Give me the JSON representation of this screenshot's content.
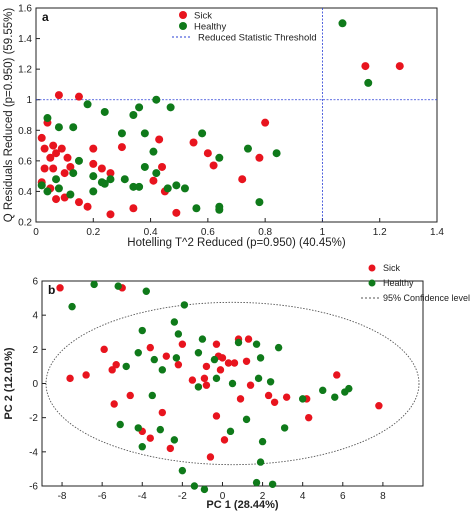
{
  "colors": {
    "sick": "#e8141e",
    "healthy": "#0f7a1a",
    "threshold": "#2a3fd6",
    "ellipse": "#555555",
    "frame": "#222222"
  },
  "chart_data": [
    {
      "panel_label": "a",
      "type": "scatter",
      "xlabel": "Hotelling T^2 Reduced (p=0.950) (40.45%)",
      "ylabel": "Q Residuals Reduced (p=0.950) (59.55%)",
      "xlim": [
        0,
        1.4
      ],
      "ylim": [
        0.2,
        1.6
      ],
      "xticks": [
        "0",
        "0.2",
        "0.4",
        "0.6",
        "0.8",
        "1",
        "1.2",
        "1.4"
      ],
      "yticks": [
        "0.2",
        "0.4",
        "0.6",
        "0.8",
        "1",
        "1.2",
        "1.4",
        "1.6"
      ],
      "legend": {
        "position": "top-center",
        "items": [
          "Sick",
          "Healthy",
          "Reduced Statistic Threshold"
        ]
      },
      "threshold": {
        "x": 1.0,
        "y": 1.0
      },
      "series": [
        {
          "name": "Sick",
          "points": [
            [
              0.08,
              1.03
            ],
            [
              0.15,
              1.02
            ],
            [
              0.04,
              0.85
            ],
            [
              0.02,
              0.75
            ],
            [
              0.03,
              0.68
            ],
            [
              0.06,
              0.7
            ],
            [
              0.07,
              0.65
            ],
            [
              0.09,
              0.68
            ],
            [
              0.11,
              0.62
            ],
            [
              0.05,
              0.62
            ],
            [
              0.03,
              0.55
            ],
            [
              0.06,
              0.55
            ],
            [
              0.1,
              0.52
            ],
            [
              0.12,
              0.56
            ],
            [
              0.2,
              0.58
            ],
            [
              0.23,
              0.55
            ],
            [
              0.26,
              0.52
            ],
            [
              0.02,
              0.46
            ],
            [
              0.05,
              0.42
            ],
            [
              0.07,
              0.35
            ],
            [
              0.1,
              0.36
            ],
            [
              0.15,
              0.33
            ],
            [
              0.18,
              0.3
            ],
            [
              0.26,
              0.25
            ],
            [
              0.34,
              0.29
            ],
            [
              0.2,
              0.68
            ],
            [
              0.3,
              0.69
            ],
            [
              0.43,
              0.74
            ],
            [
              0.44,
              0.56
            ],
            [
              0.41,
              0.47
            ],
            [
              0.45,
              0.4
            ],
            [
              0.55,
              0.72
            ],
            [
              0.6,
              0.65
            ],
            [
              0.62,
              0.57
            ],
            [
              0.8,
              0.85
            ],
            [
              0.78,
              0.62
            ],
            [
              0.72,
              0.48
            ],
            [
              0.49,
              0.26
            ],
            [
              1.15,
              1.22
            ],
            [
              1.27,
              1.22
            ]
          ]
        },
        {
          "name": "Healthy",
          "points": [
            [
              0.04,
              0.88
            ],
            [
              0.08,
              0.82
            ],
            [
              0.13,
              0.82
            ],
            [
              0.18,
              0.97
            ],
            [
              0.24,
              0.92
            ],
            [
              0.34,
              0.9
            ],
            [
              0.36,
              0.95
            ],
            [
              0.3,
              0.78
            ],
            [
              0.38,
              0.78
            ],
            [
              0.42,
              1.0
            ],
            [
              0.47,
              0.95
            ],
            [
              0.41,
              0.66
            ],
            [
              0.58,
              0.78
            ],
            [
              0.64,
              0.62
            ],
            [
              0.74,
              0.68
            ],
            [
              0.84,
              0.65
            ],
            [
              0.2,
              0.5
            ],
            [
              0.24,
              0.45
            ],
            [
              0.26,
              0.48
            ],
            [
              0.15,
              0.6
            ],
            [
              0.13,
              0.52
            ],
            [
              0.08,
              0.42
            ],
            [
              0.07,
              0.48
            ],
            [
              0.02,
              0.44
            ],
            [
              0.04,
              0.4
            ],
            [
              0.31,
              0.48
            ],
            [
              0.34,
              0.43
            ],
            [
              0.38,
              0.56
            ],
            [
              0.36,
              0.43
            ],
            [
              0.42,
              0.52
            ],
            [
              0.46,
              0.42
            ],
            [
              0.52,
              0.42
            ],
            [
              0.56,
              0.29
            ],
            [
              0.64,
              0.3
            ],
            [
              0.64,
              0.28
            ],
            [
              0.78,
              0.33
            ],
            [
              0.49,
              0.44
            ],
            [
              0.23,
              0.46
            ],
            [
              0.2,
              0.4
            ],
            [
              0.12,
              0.38
            ],
            [
              1.07,
              1.5
            ],
            [
              1.16,
              1.11
            ]
          ]
        }
      ]
    },
    {
      "panel_label": "b",
      "type": "scatter",
      "xlabel": "PC 1 (28.44%)",
      "ylabel": "PC 2 (12.01%)",
      "xlim": [
        -9,
        10
      ],
      "ylim": [
        -6,
        6
      ],
      "xticks": [
        "-8",
        "-6",
        "-4",
        "-2",
        "0",
        "2",
        "4",
        "6",
        "8"
      ],
      "yticks": [
        "-6",
        "-4",
        "-2",
        "0",
        "2",
        "4",
        "6"
      ],
      "legend": {
        "position": "top-right",
        "items": [
          "Sick",
          "Healthy",
          "95% Confidence level"
        ]
      },
      "ellipse": {
        "cx": 0.5,
        "cy": 0,
        "rx": 9.3,
        "ry": 4.75
      },
      "series": [
        {
          "name": "Sick",
          "points": [
            [
              -8.1,
              5.6
            ],
            [
              -7.6,
              0.3
            ],
            [
              -6.8,
              0.5
            ],
            [
              -5.0,
              5.6
            ],
            [
              -5.9,
              2.0
            ],
            [
              -5.3,
              1.1
            ],
            [
              -5.5,
              0.8
            ],
            [
              -5.4,
              -1.2
            ],
            [
              -4.6,
              -0.7
            ],
            [
              -4.0,
              -2.8
            ],
            [
              -3.6,
              -3.2
            ],
            [
              -3.0,
              -1.7
            ],
            [
              -3.6,
              2.1
            ],
            [
              -2.8,
              1.6
            ],
            [
              -2.0,
              2.3
            ],
            [
              -2.2,
              1.1
            ],
            [
              -1.5,
              0.2
            ],
            [
              -0.9,
              0.3
            ],
            [
              -0.8,
              1.0
            ],
            [
              -0.8,
              -0.1
            ],
            [
              -0.2,
              1.6
            ],
            [
              0.0,
              1.5
            ],
            [
              0.3,
              1.2
            ],
            [
              0.6,
              1.2
            ],
            [
              1.2,
              1.3
            ],
            [
              1.3,
              2.6
            ],
            [
              0.8,
              2.6
            ],
            [
              -0.3,
              2.3
            ],
            [
              2.3,
              -0.7
            ],
            [
              2.6,
              -1.1
            ],
            [
              3.2,
              -0.8
            ],
            [
              4.2,
              -0.9
            ],
            [
              4.3,
              -2.0
            ],
            [
              -0.3,
              -1.9
            ],
            [
              0.1,
              -3.3
            ],
            [
              -0.6,
              -4.3
            ],
            [
              -2.6,
              -3.8
            ],
            [
              7.8,
              -1.3
            ],
            [
              5.7,
              0.5
            ],
            [
              1.4,
              -0.1
            ],
            [
              0.9,
              -0.9
            ],
            [
              -0.1,
              0.8
            ]
          ]
        },
        {
          "name": "Healthy",
          "points": [
            [
              -7.5,
              4.5
            ],
            [
              -6.4,
              5.8
            ],
            [
              -5.2,
              5.7
            ],
            [
              -3.8,
              5.4
            ],
            [
              -1.9,
              4.6
            ],
            [
              -2.4,
              3.6
            ],
            [
              -4.0,
              3.1
            ],
            [
              -4.2,
              1.8
            ],
            [
              -2.2,
              2.9
            ],
            [
              -1.0,
              2.6
            ],
            [
              0.8,
              2.4
            ],
            [
              1.7,
              2.3
            ],
            [
              1.9,
              1.5
            ],
            [
              2.8,
              2.1
            ],
            [
              -0.4,
              1.4
            ],
            [
              -1.2,
              1.8
            ],
            [
              -2.3,
              1.5
            ],
            [
              -3.4,
              1.4
            ],
            [
              -3.0,
              0.8
            ],
            [
              -4.8,
              1.0
            ],
            [
              -3.5,
              -0.7
            ],
            [
              -5.1,
              -2.4
            ],
            [
              -4.2,
              -2.6
            ],
            [
              -4.0,
              -3.7
            ],
            [
              -3.1,
              -2.7
            ],
            [
              -2.4,
              -3.3
            ],
            [
              -2.0,
              -5.1
            ],
            [
              -1.4,
              -6.0
            ],
            [
              -0.9,
              -6.2
            ],
            [
              1.7,
              -5.8
            ],
            [
              2.5,
              -5.9
            ],
            [
              1.9,
              -4.6
            ],
            [
              2.0,
              -3.4
            ],
            [
              1.2,
              -2.1
            ],
            [
              0.4,
              -2.8
            ],
            [
              3.1,
              -2.6
            ],
            [
              4.0,
              -0.9
            ],
            [
              5.0,
              -0.4
            ],
            [
              5.6,
              -0.8
            ],
            [
              6.1,
              -0.5
            ],
            [
              6.3,
              -0.3
            ],
            [
              2.4,
              0.1
            ],
            [
              1.8,
              0.3
            ],
            [
              -0.3,
              0.3
            ],
            [
              0.5,
              0.0
            ],
            [
              -1.2,
              -0.2
            ]
          ]
        }
      ]
    }
  ]
}
